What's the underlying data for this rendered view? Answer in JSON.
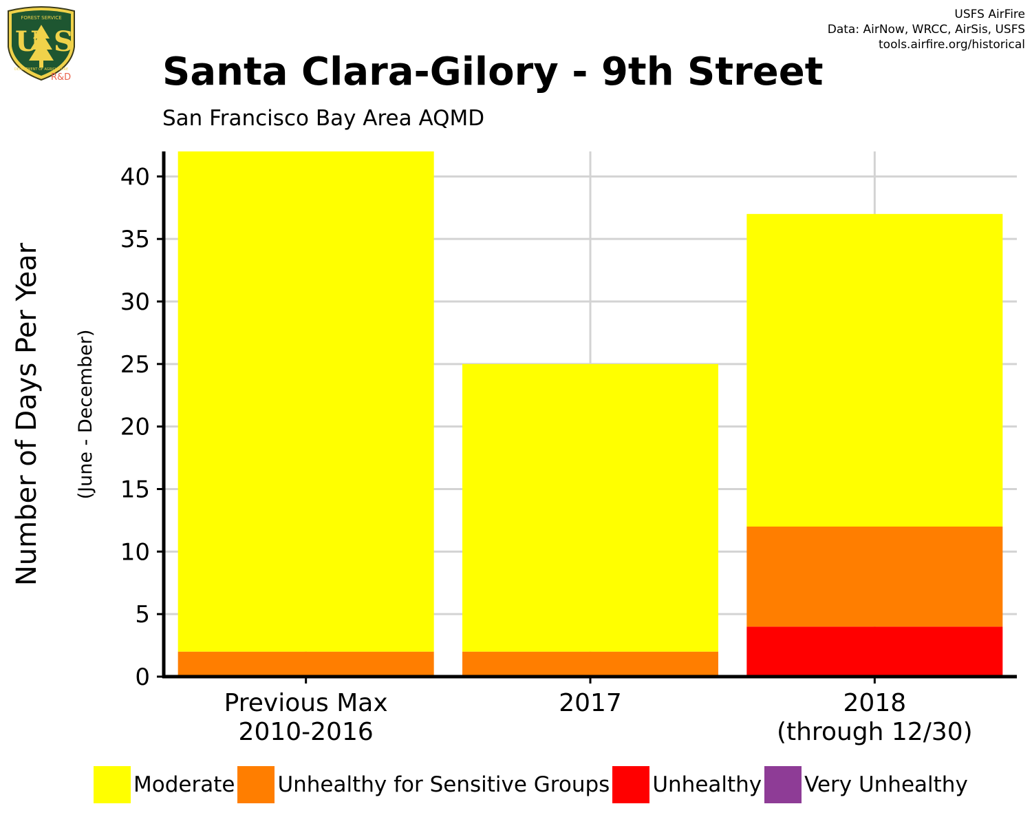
{
  "logo": {
    "top_text": "FOREST SERVICE",
    "bottom_text": "DEPARTMENT OF AGRICULTURE",
    "letters": "US",
    "rd": "R&D"
  },
  "credits": [
    "USFS AirFire",
    "Data: AirNow, WRCC, AirSis, USFS",
    "tools.airfire.org/historical"
  ],
  "title": "Santa Clara-Gilory - 9th Street",
  "subtitle": "San Francisco Bay Area AQMD",
  "chart_data": {
    "type": "bar",
    "stacked": true,
    "categories": [
      [
        "Previous Max",
        "2010-2016"
      ],
      [
        "2017"
      ],
      [
        "2018",
        "(through 12/30)"
      ]
    ],
    "series": [
      {
        "name": "Very Unhealthy",
        "color": "#8E3C96",
        "values": [
          0,
          0,
          0
        ]
      },
      {
        "name": "Unhealthy",
        "color": "#FF0000",
        "values": [
          0,
          0,
          4
        ]
      },
      {
        "name": "Unhealthy for Sensitive Groups",
        "color": "#FF7E00",
        "values": [
          2,
          2,
          8
        ]
      },
      {
        "name": "Moderate",
        "color": "#FFFF00",
        "values": [
          40,
          23,
          25
        ]
      }
    ],
    "ylabel": "Number of Days Per Year",
    "ylabel2": "(June - December)",
    "ylim": [
      0,
      42
    ],
    "yticks": [
      0,
      5,
      10,
      15,
      20,
      25,
      30,
      35,
      40
    ],
    "grid": true,
    "legend_position": "bottom"
  },
  "legend": [
    {
      "label": "Moderate",
      "color": "#FFFF00"
    },
    {
      "label": "Unhealthy for Sensitive Groups",
      "color": "#FF7E00"
    },
    {
      "label": "Unhealthy",
      "color": "#FF0000"
    },
    {
      "label": "Very Unhealthy",
      "color": "#8E3C96"
    }
  ]
}
